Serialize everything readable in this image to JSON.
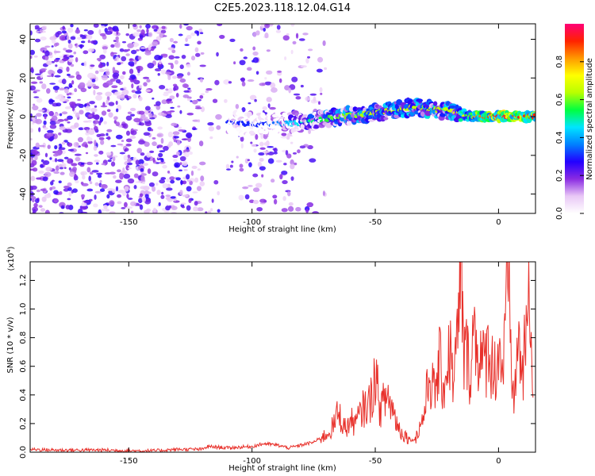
{
  "title": "C2E5.2023.118.12.04.G14",
  "chart_data": [
    {
      "type": "heatmap",
      "xlabel": "Height of straight line (km)",
      "ylabel": "Frequency (Hz)",
      "xlim": [
        -190,
        15
      ],
      "ylim": [
        -50,
        48
      ],
      "x_ticks": [
        -150,
        -100,
        -50,
        0
      ],
      "y_ticks": [
        -40,
        -20,
        0,
        20,
        40
      ],
      "colorbar": {
        "label": "Normalized spectral amplitude",
        "range": [
          0,
          1
        ],
        "ticks": [
          0.0,
          0.2,
          0.4,
          0.6,
          0.8
        ],
        "colors": [
          "#ffffff",
          "#e9c8f6",
          "#8a2be2",
          "#2200ff",
          "#0080ff",
          "#00e5ff",
          "#00ff40",
          "#b8ff00",
          "#ffff00",
          "#ff9900",
          "#ff2200",
          "#ff0077"
        ]
      },
      "ridge": {
        "description_points": [
          {
            "x": -110,
            "y": -3,
            "level": 0.3
          },
          {
            "x": -95,
            "y": -4,
            "level": 0.3
          },
          {
            "x": -78,
            "y": -3,
            "level": 0.5
          },
          {
            "x": -65,
            "y": 0,
            "level": 0.6
          },
          {
            "x": -50,
            "y": 2,
            "level": 0.65
          },
          {
            "x": -35,
            "y": 5,
            "level": 0.65
          },
          {
            "x": -20,
            "y": 3,
            "level": 0.65
          },
          {
            "x": -10,
            "y": 0,
            "level": 0.8
          },
          {
            "x": 0,
            "y": 0,
            "level": 0.95
          },
          {
            "x": 12,
            "y": 0,
            "level": 0.9
          }
        ]
      }
    },
    {
      "type": "line",
      "xlabel": "Height of straight line (km)",
      "ylabel": "SNR (10 * v/v)",
      "y_multiplier": "(x10",
      "y_multiplier_exp": "4",
      "y_multiplier_close": ")",
      "xlim": [
        -190,
        15
      ],
      "ylim": [
        0,
        1.33
      ],
      "x_ticks": [
        -150,
        -100,
        -50,
        0
      ],
      "y_ticks": [
        0.0,
        0.2,
        0.4,
        0.6,
        0.8,
        1.0,
        1.2
      ],
      "color": "#e8312b",
      "series": [
        {
          "x": [
            -190,
            -180,
            -170,
            -160,
            -150,
            -140,
            -130,
            -120,
            -118,
            -110,
            -100,
            -95,
            -90,
            -85,
            -80,
            -75,
            -70,
            -67,
            -65,
            -62,
            -60,
            -58,
            -55,
            -52,
            -50,
            -48,
            -45,
            -42,
            -40,
            -38,
            -35,
            -33,
            -30,
            -28,
            -26,
            -24,
            -22,
            -20,
            -18,
            -16,
            -15,
            -14,
            -13,
            -12,
            -10,
            -8,
            -6,
            -4,
            -2,
            0,
            2,
            4,
            6,
            8,
            10,
            12,
            14
          ],
          "y": [
            0.02,
            0.015,
            0.015,
            0.015,
            0.01,
            0.01,
            0.02,
            0.02,
            0.04,
            0.03,
            0.04,
            0.06,
            0.05,
            0.03,
            0.05,
            0.07,
            0.12,
            0.18,
            0.28,
            0.16,
            0.22,
            0.2,
            0.3,
            0.35,
            0.55,
            0.3,
            0.4,
            0.25,
            0.15,
            0.12,
            0.08,
            0.12,
            0.28,
            0.55,
            0.4,
            0.62,
            0.45,
            0.72,
            0.5,
            0.95,
            1.33,
            0.6,
            0.75,
            0.55,
            0.85,
            0.7,
            0.6,
            0.75,
            0.55,
            0.7,
            0.6,
            1.18,
            0.35,
            0.75,
            0.55,
            1.0,
            0.65
          ]
        }
      ]
    }
  ]
}
